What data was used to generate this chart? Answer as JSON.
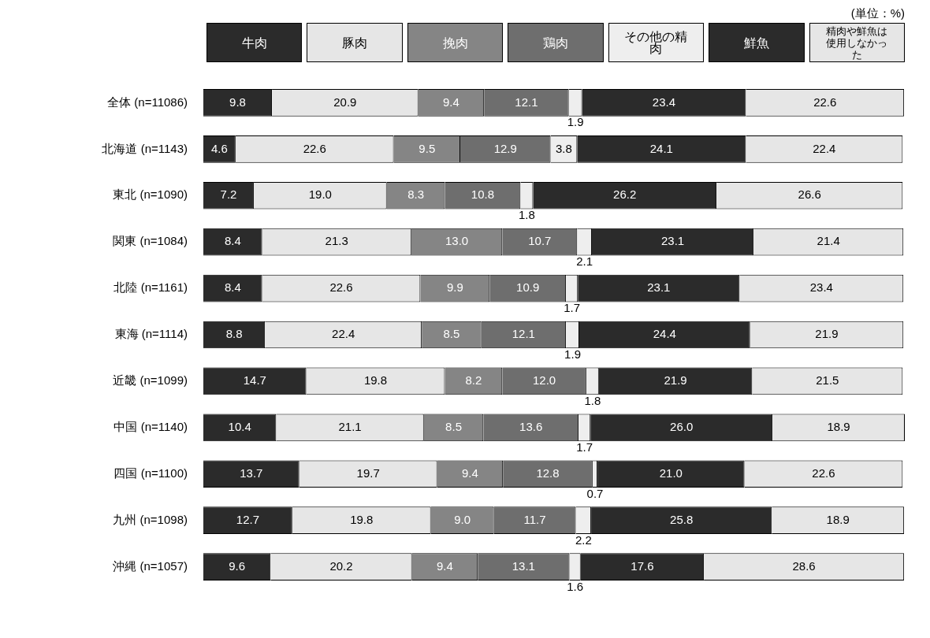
{
  "chart_data": {
    "type": "bar",
    "orientation": "horizontal",
    "stacked": true,
    "legend": "top",
    "annotations": [
      "(単位：%)"
    ],
    "categories": [
      "全体 (n=11086)",
      "北海道 (n=1143)",
      "東北 (n=1090)",
      "関東 (n=1084)",
      "北陸 (n=1161)",
      "東海 (n=1114)",
      "近畿 (n=1099)",
      "中国 (n=1140)",
      "四国 (n=1100)",
      "九州 (n=1098)",
      "沖縄 (n=1057)"
    ],
    "series": [
      {
        "name": "牛肉",
        "color": "#2b2b2b",
        "values": [
          9.8,
          4.6,
          7.2,
          8.4,
          8.4,
          8.8,
          14.7,
          10.4,
          13.7,
          12.7,
          9.6
        ],
        "value_labels": [
          "9.8",
          "4.6",
          "7.2",
          "8.4",
          "8.4",
          "8.8",
          "14.7",
          "10.4",
          "13.7",
          "12.7",
          "9.6"
        ]
      },
      {
        "name": "豚肉",
        "color": "#e6e6e6",
        "values": [
          20.9,
          22.6,
          19.0,
          21.3,
          22.6,
          22.4,
          19.8,
          21.1,
          19.7,
          19.8,
          20.2
        ],
        "value_labels": [
          "20.9",
          "22.6",
          "19.0",
          "21.3",
          "22.6",
          "22.4",
          "19.8",
          "21.1",
          "19.7",
          "19.8",
          "20.2"
        ]
      },
      {
        "name": "挽肉",
        "color": "#858585",
        "values": [
          9.4,
          9.5,
          8.3,
          13.0,
          9.9,
          8.5,
          8.2,
          8.5,
          9.4,
          9.0,
          9.4
        ],
        "value_labels": [
          "9.4",
          "9.5",
          "8.3",
          "13.0",
          "9.9",
          "8.5",
          "8.2",
          "8.5",
          "9.4",
          "9.0",
          "9.4"
        ]
      },
      {
        "name": "鶏肉",
        "color": "#6e6e6e",
        "values": [
          12.1,
          12.9,
          10.8,
          10.7,
          10.9,
          12.1,
          12.0,
          13.6,
          12.8,
          11.7,
          13.1
        ],
        "value_labels": [
          "12.1",
          "12.9",
          "10.8",
          "10.7",
          "10.9",
          "12.1",
          "12.0",
          "13.6",
          "12.8",
          "11.7",
          "13.1"
        ]
      },
      {
        "name": "その他の精肉",
        "color": "#eeeeee",
        "values": [
          1.9,
          3.8,
          1.8,
          2.1,
          1.7,
          1.9,
          1.8,
          1.7,
          0.7,
          2.2,
          1.6
        ],
        "value_labels": [
          "1.9",
          "3.8",
          "1.8",
          "2.1",
          "1.7",
          "1.9",
          "1.8",
          "1.7",
          "0.7",
          "2.2",
          "1.6"
        ]
      },
      {
        "name": "鮮魚",
        "color": "#2b2b2b",
        "values": [
          23.4,
          24.1,
          26.2,
          23.1,
          23.1,
          24.4,
          21.9,
          26.0,
          21.0,
          25.8,
          17.6
        ],
        "value_labels": [
          "23.4",
          "24.1",
          "26.2",
          "23.1",
          "23.1",
          "24.4",
          "21.9",
          "26.0",
          "21.0",
          "25.8",
          "17.6"
        ]
      },
      {
        "name": "精肉や鮮魚は使用しなかった",
        "color": "#e6e6e6",
        "values": [
          22.6,
          22.4,
          26.6,
          21.4,
          23.4,
          21.9,
          21.5,
          18.9,
          22.6,
          18.9,
          28.6
        ],
        "value_labels": [
          "22.6",
          "22.4",
          "26.6",
          "21.4",
          "23.4",
          "21.9",
          "21.5",
          "18.9",
          "22.6",
          "18.9",
          "28.6"
        ]
      }
    ]
  }
}
